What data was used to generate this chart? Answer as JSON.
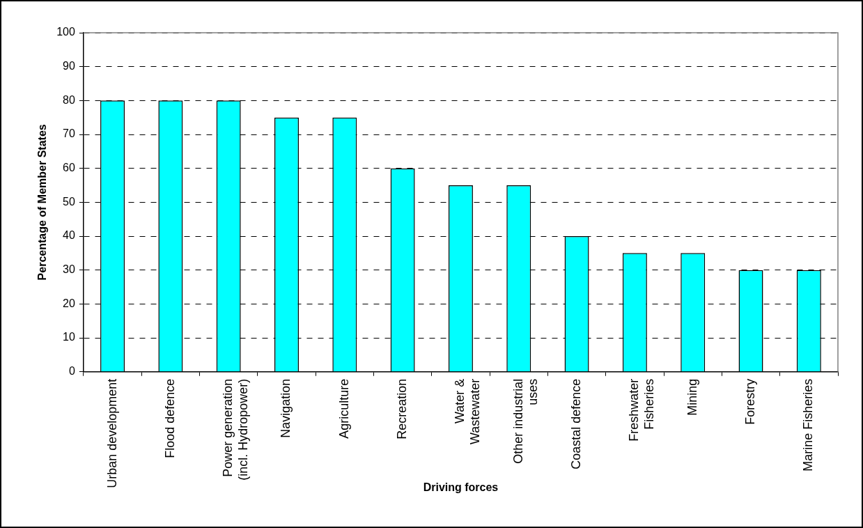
{
  "chart_data": {
    "type": "bar",
    "xlabel": "Driving forces",
    "ylabel": "Percentage of Member States",
    "categories": [
      "Urban development",
      "Flood defence",
      "Power generation\n(incl. Hydropower)",
      "Navigation",
      "Agriculture",
      "Recreation",
      "Water &\nWastewater",
      "Other industrial\nuses",
      "Coastal defence",
      "Freshwater\nFisheries",
      "Mining",
      "Forestry",
      "Marine Fisheries"
    ],
    "values": [
      80,
      80,
      80,
      75,
      75,
      60,
      55,
      55,
      40,
      35,
      35,
      30,
      30
    ],
    "color": "#00ffff",
    "ylim": [
      0,
      100
    ],
    "yticks": [
      0,
      10,
      20,
      30,
      40,
      50,
      60,
      70,
      80,
      90,
      100
    ],
    "grid": "y"
  }
}
